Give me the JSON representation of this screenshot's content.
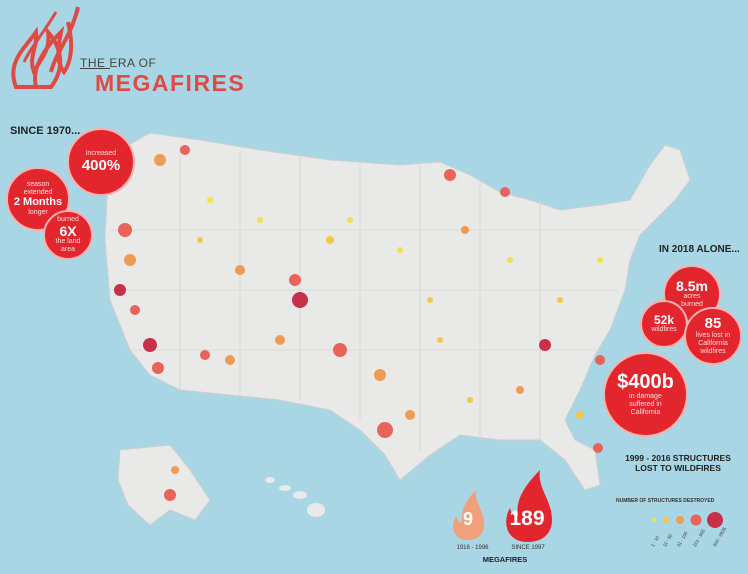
{
  "header": {
    "title_small": "THE ERA OF",
    "title_big": "MEGAFIRES"
  },
  "since1970": {
    "heading": "SINCE 1970...",
    "stats": [
      {
        "small_top": "increased",
        "big": "400%",
        "small_bottom": ""
      },
      {
        "small_top": "season extended",
        "big": "2 Months",
        "small_bottom": "longer"
      },
      {
        "small_top": "burned",
        "big": "6X",
        "small_bottom": "the land area"
      }
    ]
  },
  "in2018": {
    "heading": "IN 2018 ALONE...",
    "stats": [
      {
        "big": "8.5m",
        "small": "acres burned"
      },
      {
        "big": "52k",
        "small": "wildfires"
      },
      {
        "big": "85",
        "small": "lives lost in California wildfires"
      },
      {
        "big": "$400b",
        "small": "in damage suffered in California"
      }
    ]
  },
  "structures": {
    "title": "1999 - 2016 STRUCTURES LOST TO WILDFIRES",
    "legend_title": "NUMBER OF STRUCTURES DESTROYED",
    "legend": [
      "1 - 10",
      "11 - 50",
      "51 - 100",
      "101 - 500",
      "500 - 2635"
    ],
    "legend_colors": [
      "#f5e04a",
      "#f5c64a",
      "#f09a52",
      "#e8645a",
      "#c8304a"
    ]
  },
  "megafires": {
    "label": "MEGAFIRES",
    "before": {
      "value": "9",
      "caption": "1916 - 1996",
      "color": "#f0a07a"
    },
    "after": {
      "value": "189",
      "caption": "SINCE 1997",
      "color": "#e3262e"
    }
  },
  "colors": {
    "accent": "#e04a45",
    "ocean": "#a9d6e5",
    "land": "#e9e9e7"
  }
}
